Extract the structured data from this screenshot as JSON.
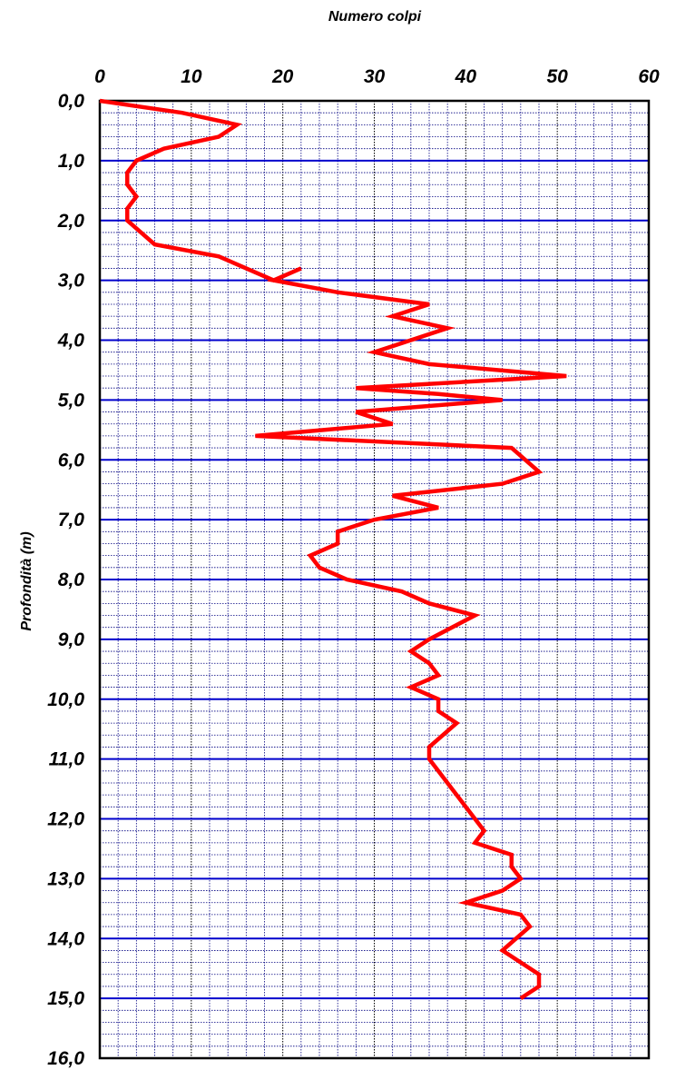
{
  "chart_data": {
    "type": "line",
    "xlabel": "Numero colpi",
    "ylabel": "Profondità (m)",
    "xlim": [
      0,
      60
    ],
    "ylim": [
      0,
      16
    ],
    "y_inverted": true,
    "x_axis_position": "top",
    "x_ticks": [
      "0",
      "10",
      "20",
      "30",
      "40",
      "50",
      "60"
    ],
    "y_ticks": [
      "0,0",
      "1,0",
      "2,0",
      "3,0",
      "4,0",
      "5,0",
      "6,0",
      "7,0",
      "8,0",
      "9,0",
      "10,0",
      "11,0",
      "12,0",
      "13,0",
      "14,0",
      "15,0",
      "16,0"
    ],
    "grid": true,
    "series": [
      {
        "x": [
          0,
          9,
          15,
          13,
          7,
          4,
          3,
          3,
          4,
          3,
          3,
          6,
          13,
          19,
          22,
          19,
          26,
          36,
          32,
          38,
          34,
          30,
          36,
          51,
          28,
          37,
          44,
          28,
          32,
          17,
          45,
          48,
          44,
          32,
          37,
          30,
          26,
          26,
          23,
          24,
          27,
          33,
          36,
          41,
          36,
          34,
          36,
          37,
          34,
          37,
          37,
          39,
          36,
          36,
          38,
          40,
          42,
          41,
          45,
          45,
          46,
          44,
          40,
          46,
          47,
          44,
          48,
          48,
          46
        ],
        "y": [
          0.0,
          0.2,
          0.4,
          0.6,
          0.8,
          1.0,
          1.2,
          1.4,
          1.6,
          1.8,
          2.0,
          2.4,
          2.6,
          3.0,
          2.8,
          3.0,
          3.2,
          3.4,
          3.6,
          3.8,
          4.0,
          4.2,
          4.4,
          4.6,
          4.8,
          4.9,
          5.0,
          5.2,
          5.4,
          5.6,
          5.8,
          6.2,
          6.4,
          6.6,
          6.8,
          7.0,
          7.2,
          7.4,
          7.6,
          7.8,
          8.0,
          8.2,
          8.4,
          8.6,
          9.0,
          9.2,
          9.4,
          9.6,
          9.8,
          10.0,
          10.2,
          10.4,
          10.8,
          11.0,
          11.4,
          11.8,
          12.2,
          12.4,
          12.6,
          12.8,
          13.0,
          13.2,
          13.4,
          13.6,
          13.8,
          14.2,
          14.6,
          14.8,
          15.0
        ],
        "color": "#ff0000"
      }
    ],
    "colors": {
      "major_grid_h": "#0000cc",
      "minor_grid": "#000080",
      "frame": "#000000",
      "line": "#ff0000",
      "x_title": "#3333cc",
      "y_title": "#ff0000"
    }
  }
}
